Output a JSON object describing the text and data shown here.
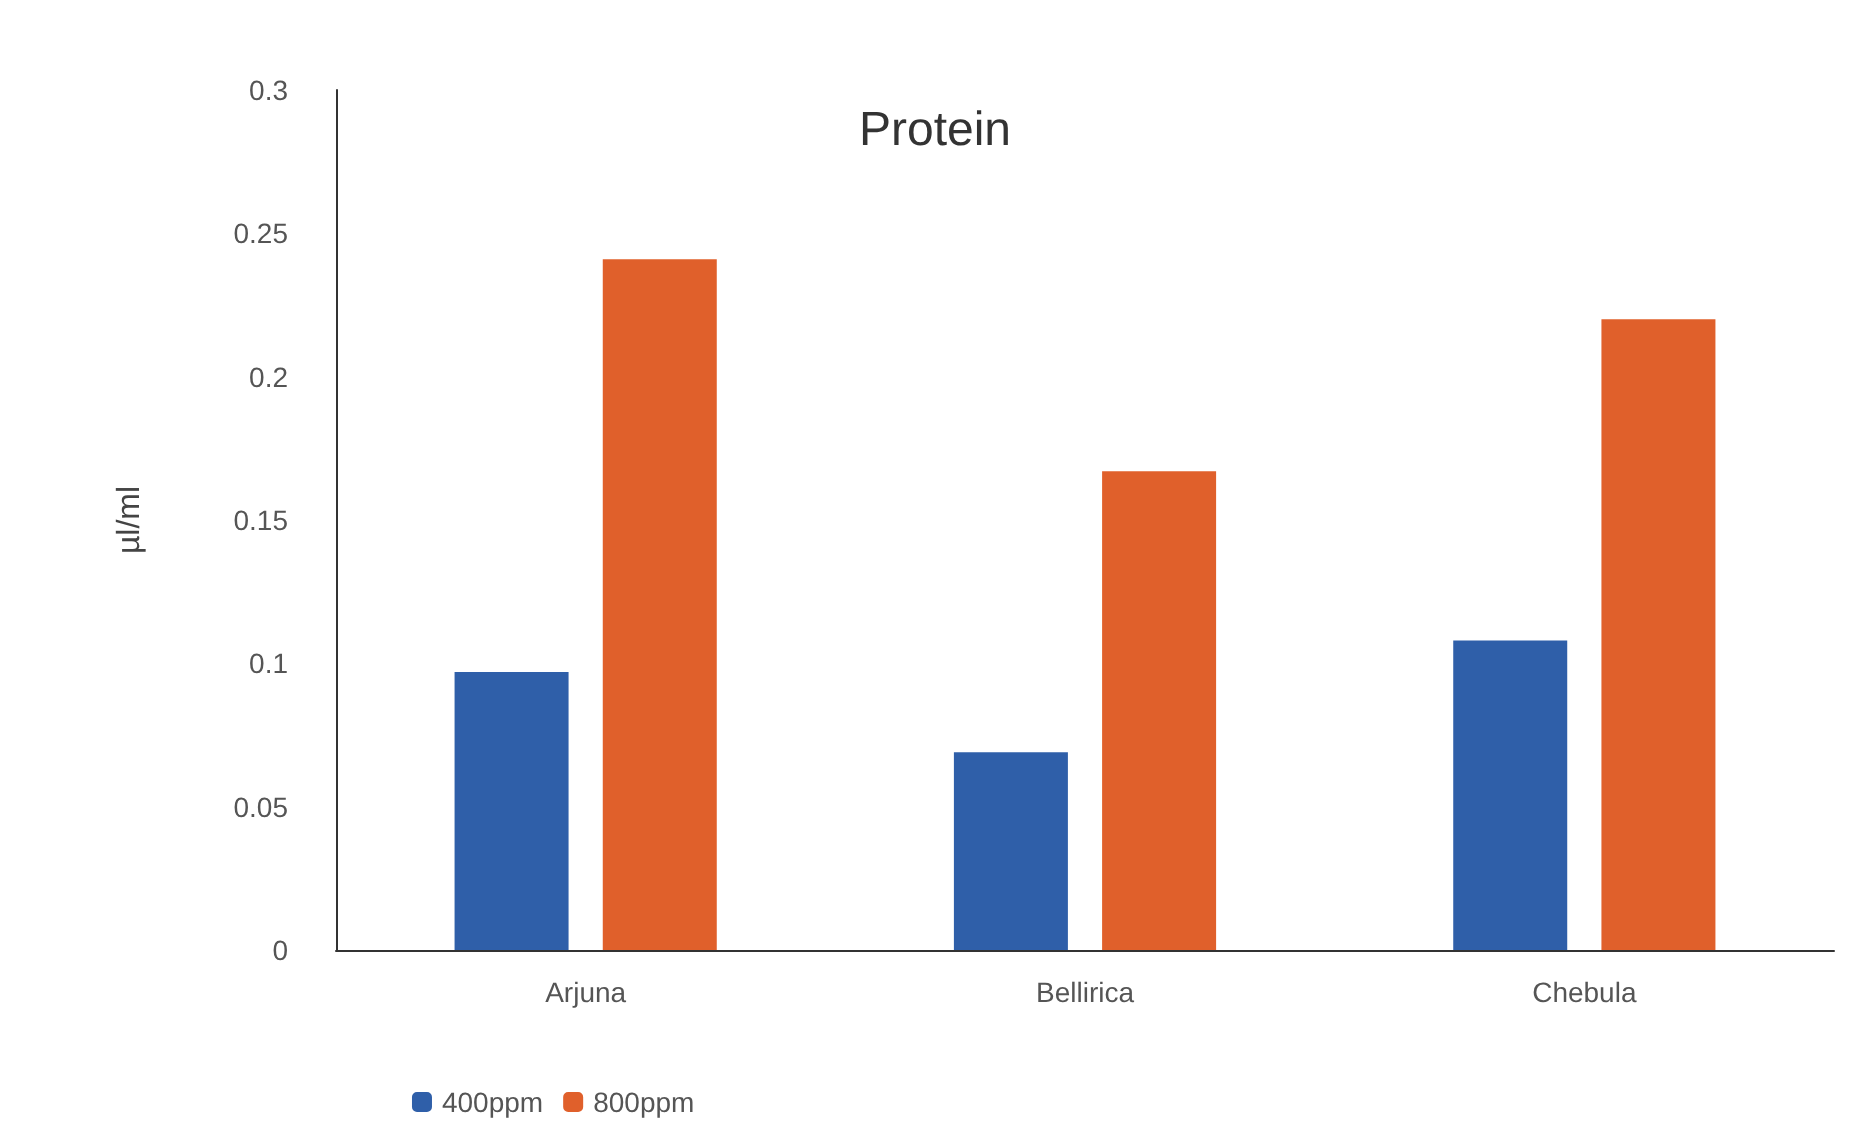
{
  "chart_data": {
    "type": "bar",
    "title": "Protein",
    "ylabel": "µl/ml",
    "categories": [
      "Arjuna",
      "Bellirica",
      "Chebula"
    ],
    "series": [
      {
        "name": "400ppm",
        "color": "#2f5fa9",
        "values": [
          0.097,
          0.069,
          0.108
        ]
      },
      {
        "name": "800ppm",
        "color": "#e0602b",
        "values": [
          0.241,
          0.167,
          0.22
        ]
      }
    ],
    "ylim": [
      0,
      0.3
    ],
    "yticks": [
      0,
      0.05,
      0.1,
      0.15,
      0.2,
      0.25,
      0.3
    ],
    "grid": false,
    "legend": "bottom"
  }
}
